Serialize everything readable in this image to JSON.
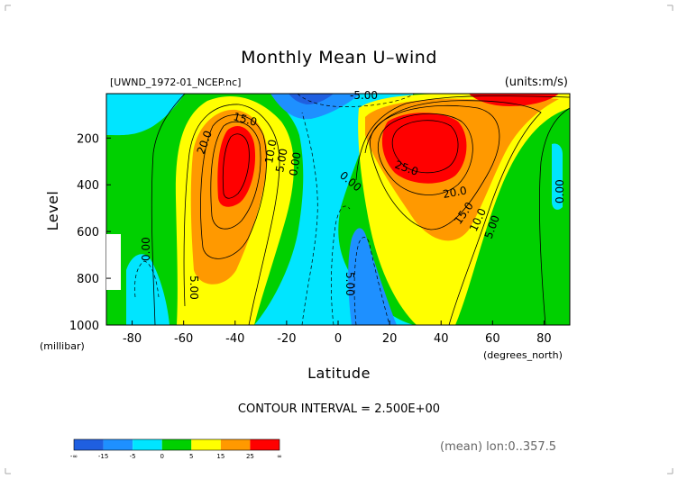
{
  "title": "Monthly Mean U–wind",
  "file_label": "[UWND_1972-01_NCEP.nc]",
  "units_label": "(units:m/s)",
  "contour_interval_text": "CONTOUR INTERVAL = 2.500E+00",
  "mean_text": "(mean) lon:0..357.5",
  "colors": {
    "lt_m15": "#1f5fe0",
    "m15_m5": "#1e90ff",
    "m5_0": "#00e5ff",
    "0_5": "#00d000",
    "5_15": "#ffff00",
    "15_25": "#ff9900",
    "gt_25": "#ff0000"
  },
  "chart_data": {
    "type": "contour",
    "title": "Monthly Mean U–wind",
    "xlabel": "Latitude",
    "x_units": "(degrees_north)",
    "ylabel": "Level",
    "y_units": "(millibar)",
    "xlim": [
      -90,
      90
    ],
    "ylim": [
      1000,
      10
    ],
    "y_reversed": true,
    "x_ticks": [
      -80,
      -60,
      -40,
      -20,
      0,
      20,
      40,
      60,
      80
    ],
    "y_ticks": [
      200,
      400,
      600,
      800,
      1000
    ],
    "contour_interval": 2.5,
    "contour_labels": [
      "15.0",
      "20.0",
      "10.0",
      "5.00",
      "0.00",
      "25.0",
      "20.0",
      "15.0",
      "10.0",
      "5.00",
      "0.00",
      "0.00",
      "0.00",
      "5.00",
      "5.00",
      "-5.00"
    ],
    "jets": [
      {
        "name": "southern_jet",
        "lat": -43,
        "level": 250,
        "max": 27.5
      },
      {
        "name": "northern_jet",
        "lat": 28,
        "level": 200,
        "max": 30
      }
    ],
    "colorbar": {
      "tick_labels": [
        "-∞",
        "-15",
        "-5",
        "0",
        "5",
        "15",
        "25",
        "∞"
      ]
    }
  }
}
